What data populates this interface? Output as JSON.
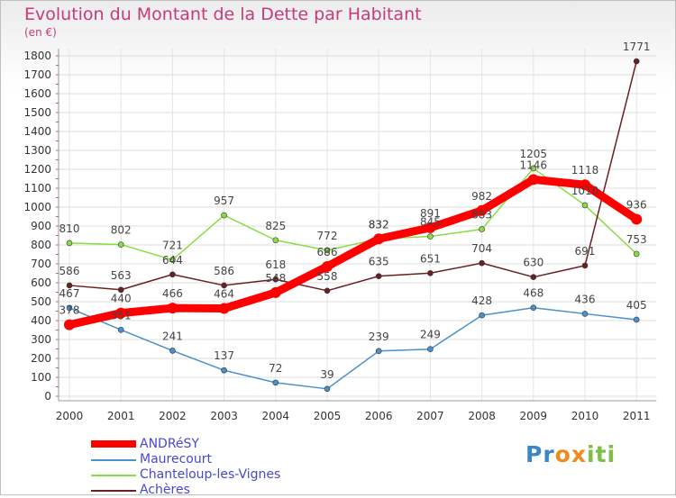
{
  "chart_data": {
    "type": "line",
    "title": "Evolution du Montant de la Dette par Habitant",
    "subtitle": "(en €)",
    "categories": [
      "2000",
      "2001",
      "2002",
      "2003",
      "2004",
      "2005",
      "2006",
      "2007",
      "2008",
      "2009",
      "2010",
      "2011"
    ],
    "ylim": [
      0,
      1800
    ],
    "yticks": [
      0,
      100,
      200,
      300,
      400,
      500,
      600,
      700,
      800,
      900,
      1000,
      1100,
      1200,
      1300,
      1400,
      1500,
      1600,
      1700,
      1800
    ],
    "grid": true,
    "legend_position": "bottom-left",
    "series": [
      {
        "name": "Chanteloup-les-Vignes",
        "color": "#88dd44",
        "values": [
          810,
          802,
          721,
          957,
          825,
          772,
          832,
          845,
          883,
          1205,
          1010,
          753
        ]
      },
      {
        "name": "Maurecourt",
        "color": "#4a90cc",
        "values": [
          467,
          351,
          241,
          137,
          72,
          39,
          239,
          249,
          428,
          468,
          436,
          405
        ]
      },
      {
        "name": "Achères",
        "color": "#6b1f22",
        "values": [
          586,
          563,
          644,
          586,
          618,
          558,
          635,
          651,
          704,
          630,
          691,
          1771
        ]
      },
      {
        "name": "ANDRéSY",
        "color": "#ff0000",
        "values": [
          378,
          440,
          466,
          464,
          548,
          686,
          832,
          891,
          982,
          1146,
          1118,
          936
        ]
      }
    ]
  },
  "legend": [
    {
      "label": "ANDRéSY",
      "color": "#ff0000"
    },
    {
      "label": "Maurecourt",
      "color": "#4a90cc"
    },
    {
      "label": "Chanteloup-les-Vignes",
      "color": "#88dd44"
    },
    {
      "label": "Achères",
      "color": "#6b1f22"
    }
  ],
  "logo": {
    "letters": [
      "P",
      "r",
      "o",
      "x",
      "i",
      "t",
      "i"
    ],
    "colors": [
      "#3a86c8",
      "#3a86c8",
      "#f08a1c",
      "#f08a1c",
      "#7ac143",
      "#7ac143",
      "#7ac143"
    ]
  }
}
